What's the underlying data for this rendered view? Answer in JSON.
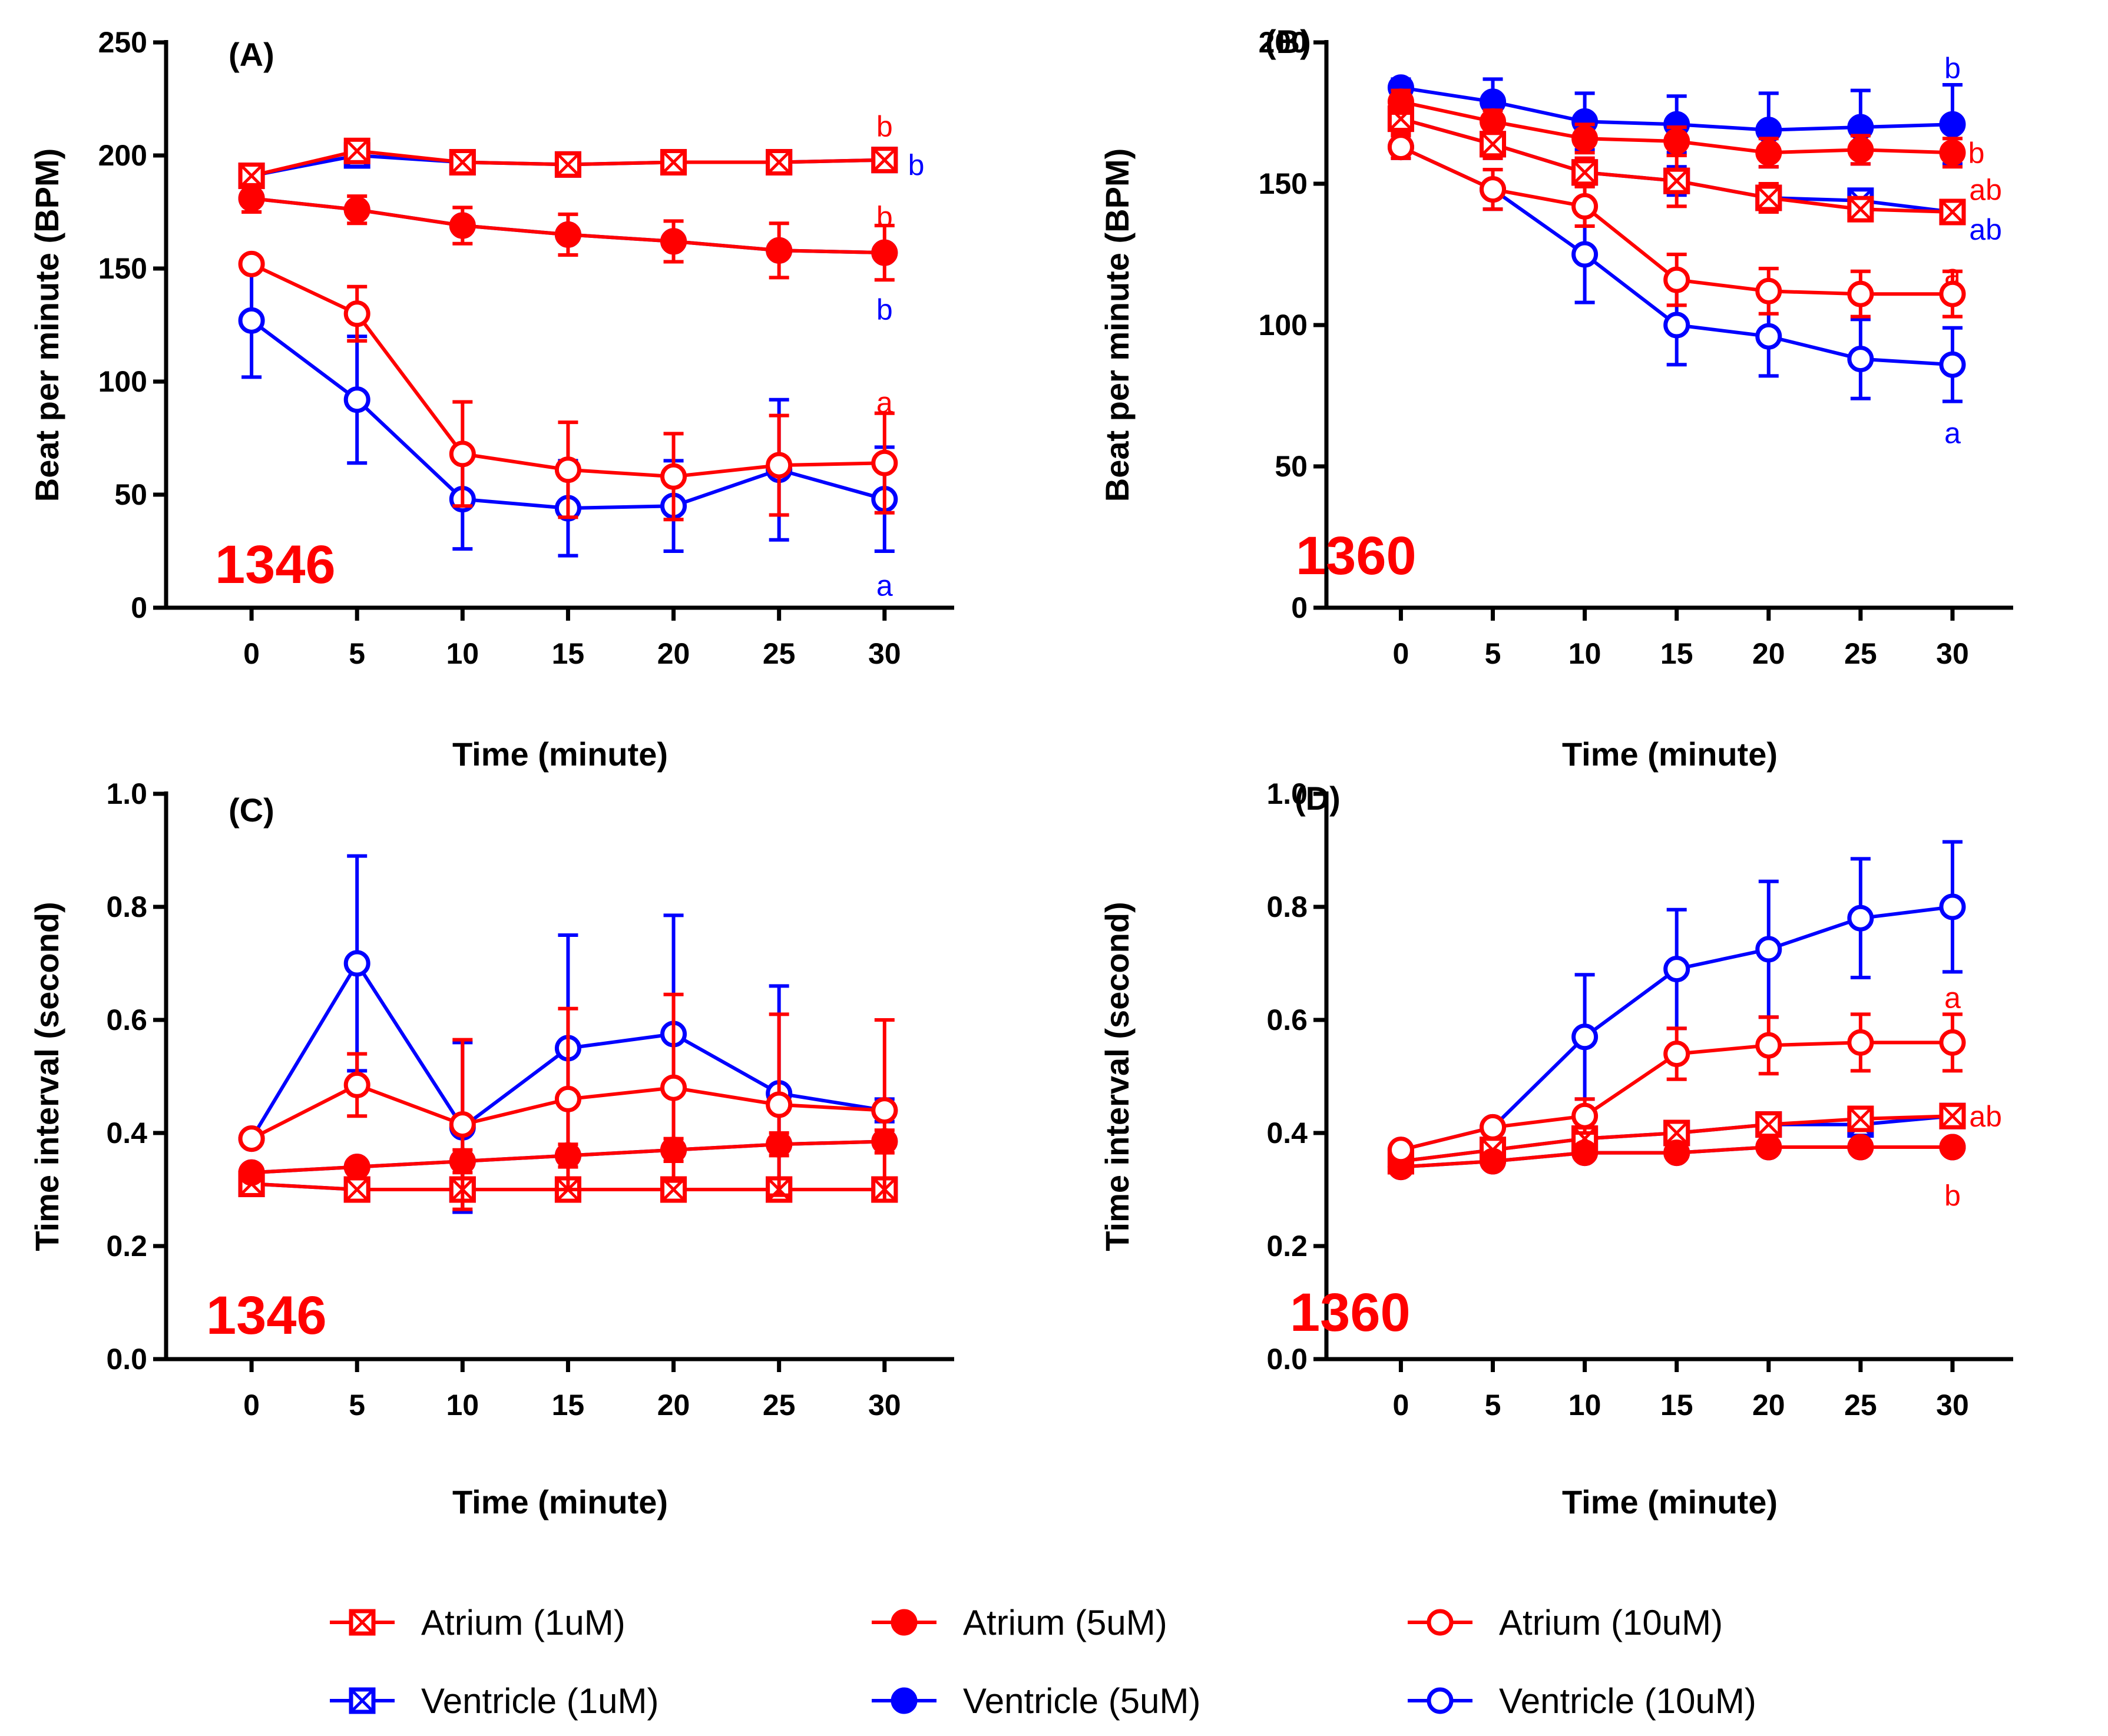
{
  "colors": {
    "atrium": "#ff0000",
    "ventricle": "#0000ff"
  },
  "legend": [
    {
      "label": "Atrium (1uM)",
      "color": "#ff0000",
      "marker": "boxx"
    },
    {
      "label": "Atrium (5uM)",
      "color": "#ff0000",
      "marker": "filled"
    },
    {
      "label": "Atrium (10uM)",
      "color": "#ff0000",
      "marker": "open"
    },
    {
      "label": "Ventricle (1uM)",
      "color": "#0000ff",
      "marker": "boxx"
    },
    {
      "label": "Ventricle (5uM)",
      "color": "#0000ff",
      "marker": "filled"
    },
    {
      "label": "Ventricle (10uM)",
      "color": "#0000ff",
      "marker": "open"
    }
  ],
  "chart_data": [
    {
      "panel": "(A)",
      "type": "line",
      "strain_label": "1346",
      "xlabel": "Time (minute)",
      "ylabel": "Beat per minute (BPM)",
      "x": [
        0,
        5,
        10,
        15,
        20,
        25,
        30
      ],
      "xticks": [
        "0",
        "5",
        "10",
        "15",
        "20",
        "25",
        "30"
      ],
      "ylim": [
        0,
        250
      ],
      "yticks": [
        "0",
        "50",
        "100",
        "150",
        "200",
        "250"
      ],
      "series": [
        {
          "name": "Ventricle (1uM)",
          "color": "#0000ff",
          "marker": "boxx",
          "values": [
            191,
            200,
            197,
            196,
            197,
            197,
            198
          ],
          "errors": [
            2,
            2,
            2,
            2,
            2,
            2,
            2
          ]
        },
        {
          "name": "Ventricle (5uM)",
          "color": "#0000ff",
          "marker": "filled",
          "values": [
            181,
            176,
            169,
            165,
            162,
            158,
            157
          ],
          "errors": [
            3,
            3,
            3,
            3,
            3,
            3,
            3
          ]
        },
        {
          "name": "Ventricle (10uM)",
          "color": "#0000ff",
          "marker": "open",
          "values": [
            127,
            92,
            48,
            44,
            45,
            61,
            48
          ],
          "errors": [
            25,
            28,
            22,
            21,
            20,
            31,
            23
          ]
        },
        {
          "name": "Atrium (1uM)",
          "color": "#ff0000",
          "marker": "boxx",
          "values": [
            191,
            202,
            197,
            196,
            197,
            197,
            198
          ],
          "errors": [
            2,
            2,
            2,
            2,
            2,
            2,
            2
          ]
        },
        {
          "name": "Atrium (5uM)",
          "color": "#ff0000",
          "marker": "filled",
          "values": [
            181,
            176,
            169,
            165,
            162,
            158,
            157
          ],
          "errors": [
            6,
            6,
            8,
            9,
            9,
            12,
            12
          ]
        },
        {
          "name": "Atrium (10uM)",
          "color": "#ff0000",
          "marker": "open",
          "values": [
            152,
            130,
            68,
            61,
            58,
            63,
            64
          ],
          "errors": [
            3,
            12,
            23,
            21,
            19,
            22,
            22
          ]
        }
      ],
      "annotations": [
        {
          "text": "b",
          "color": "#ff0000",
          "x": 30,
          "y": 213
        },
        {
          "text": "b",
          "color": "#0000ff",
          "x": 31.5,
          "y": 196
        },
        {
          "text": "b",
          "color": "#ff0000",
          "x": 30,
          "y": 173
        },
        {
          "text": "b",
          "color": "#0000ff",
          "x": 30,
          "y": 132
        },
        {
          "text": "a",
          "color": "#ff0000",
          "x": 30,
          "y": 91
        },
        {
          "text": "a",
          "color": "#0000ff",
          "x": 30,
          "y": 10
        }
      ]
    },
    {
      "panel": "(B)",
      "type": "line",
      "strain_label": "1360",
      "xlabel": "Time (minute)",
      "ylabel": "Beat per minute (BPM)",
      "x": [
        0,
        5,
        10,
        15,
        20,
        25,
        30
      ],
      "xticks": [
        "0",
        "5",
        "10",
        "15",
        "20",
        "25",
        "30"
      ],
      "ylim": [
        0,
        200
      ],
      "yticks": [
        "0",
        "50",
        "100",
        "150",
        "200"
      ],
      "series": [
        {
          "name": "Ventricle (1uM)",
          "color": "#0000ff",
          "marker": "boxx",
          "values": [
            173,
            164,
            154,
            151,
            145,
            144,
            140
          ],
          "errors": [
            4,
            5,
            5,
            5,
            5,
            4,
            3
          ]
        },
        {
          "name": "Ventricle (5uM)",
          "color": "#0000ff",
          "marker": "filled",
          "values": [
            184,
            179,
            172,
            171,
            169,
            170,
            171
          ],
          "errors": [
            3,
            8,
            10,
            10,
            13,
            13,
            14
          ]
        },
        {
          "name": "Ventricle (10uM)",
          "color": "#0000ff",
          "marker": "open",
          "values": [
            163,
            148,
            125,
            100,
            96,
            88,
            86
          ],
          "errors": [
            4,
            7,
            17,
            14,
            14,
            14,
            13
          ]
        },
        {
          "name": "Atrium (1uM)",
          "color": "#ff0000",
          "marker": "boxx",
          "values": [
            173,
            164,
            154,
            151,
            145,
            141,
            140
          ],
          "errors": [
            5,
            5,
            5,
            9,
            5,
            4,
            3
          ]
        },
        {
          "name": "Atrium (5uM)",
          "color": "#ff0000",
          "marker": "filled",
          "values": [
            179,
            172,
            166,
            165,
            161,
            162,
            161
          ],
          "errors": [
            4,
            4,
            5,
            5,
            5,
            5,
            5
          ]
        },
        {
          "name": "Atrium (10uM)",
          "color": "#ff0000",
          "marker": "open",
          "values": [
            163,
            148,
            142,
            116,
            112,
            111,
            111
          ],
          "errors": [
            4,
            7,
            7,
            9,
            8,
            8,
            8
          ]
        }
      ],
      "annotations": [
        {
          "text": "b",
          "color": "#0000ff",
          "x": 30,
          "y": 191
        },
        {
          "text": "b",
          "color": "#ff0000",
          "x": 31.3,
          "y": 161
        },
        {
          "text": "ab",
          "color": "#ff0000",
          "x": 31.8,
          "y": 148
        },
        {
          "text": "ab",
          "color": "#0000ff",
          "x": 31.8,
          "y": 134
        },
        {
          "text": "a",
          "color": "#ff0000",
          "x": 30,
          "y": 118
        },
        {
          "text": "a",
          "color": "#0000ff",
          "x": 30,
          "y": 62
        }
      ]
    },
    {
      "panel": "(C)",
      "type": "line",
      "strain_label": "1346",
      "xlabel": "Time (minute)",
      "ylabel": "Time interval (second)",
      "x": [
        0,
        5,
        10,
        15,
        20,
        25,
        30
      ],
      "xticks": [
        "0",
        "5",
        "10",
        "15",
        "20",
        "25",
        "30"
      ],
      "ylim": [
        0,
        1.0
      ],
      "yticks": [
        "0.0",
        "0.2",
        "0.4",
        "0.6",
        "0.8",
        "1.0"
      ],
      "series": [
        {
          "name": "Ventricle (1uM)",
          "color": "#0000ff",
          "marker": "boxx",
          "values": [
            0.31,
            0.3,
            0.3,
            0.3,
            0.3,
            0.3,
            0.3
          ],
          "errors": [
            0.01,
            0.01,
            0.04,
            0.01,
            0.01,
            0.01,
            0.01
          ]
        },
        {
          "name": "Ventricle (5uM)",
          "color": "#0000ff",
          "marker": "filled",
          "values": [
            0.33,
            0.34,
            0.35,
            0.36,
            0.37,
            0.38,
            0.385
          ],
          "errors": [
            0.01,
            0.01,
            0.01,
            0.01,
            0.01,
            0.01,
            0.01
          ]
        },
        {
          "name": "Ventricle (10uM)",
          "color": "#0000ff",
          "marker": "open",
          "values": [
            0.39,
            0.7,
            0.41,
            0.55,
            0.575,
            0.47,
            0.44
          ],
          "errors": [
            0.01,
            0.19,
            0.15,
            0.2,
            0.21,
            0.19,
            0.02
          ]
        },
        {
          "name": "Atrium (1uM)",
          "color": "#ff0000",
          "marker": "boxx",
          "values": [
            0.31,
            0.3,
            0.3,
            0.3,
            0.3,
            0.3,
            0.3
          ],
          "errors": [
            0.01,
            0.01,
            0.02,
            0.01,
            0.01,
            0.01,
            0.01
          ]
        },
        {
          "name": "Atrium (5uM)",
          "color": "#ff0000",
          "marker": "filled",
          "values": [
            0.33,
            0.34,
            0.35,
            0.36,
            0.37,
            0.38,
            0.385
          ],
          "errors": [
            0.01,
            0.01,
            0.02,
            0.02,
            0.02,
            0.02,
            0.02
          ]
        },
        {
          "name": "Atrium (10uM)",
          "color": "#ff0000",
          "marker": "open",
          "values": [
            0.39,
            0.485,
            0.415,
            0.46,
            0.48,
            0.45,
            0.44
          ],
          "errors": [
            0.01,
            0.055,
            0.15,
            0.16,
            0.165,
            0.16,
            0.16
          ]
        }
      ],
      "annotations": []
    },
    {
      "panel": "(D)",
      "type": "line",
      "strain_label": "1360",
      "xlabel": "Time (minute)",
      "ylabel": "Time interval (second)",
      "x": [
        0,
        5,
        10,
        15,
        20,
        25,
        30
      ],
      "xticks": [
        "0",
        "5",
        "10",
        "15",
        "20",
        "25",
        "30"
      ],
      "ylim": [
        0,
        1.0
      ],
      "yticks": [
        "0.0",
        "0.2",
        "0.4",
        "0.6",
        "0.8",
        "1.0"
      ],
      "series": [
        {
          "name": "Ventricle (1uM)",
          "color": "#0000ff",
          "marker": "boxx",
          "values": [
            0.35,
            0.37,
            0.39,
            0.4,
            0.415,
            0.415,
            0.43
          ],
          "errors": [
            0.01,
            0.01,
            0.01,
            0.01,
            0.01,
            0.01,
            0.01
          ]
        },
        {
          "name": "Ventricle (5uM)",
          "color": "#0000ff",
          "marker": "filled",
          "values": [
            0.34,
            0.35,
            0.365,
            0.365,
            0.375,
            0.375,
            0.375
          ],
          "errors": [
            0.01,
            0.01,
            0.01,
            0.01,
            0.01,
            0.01,
            0.01
          ]
        },
        {
          "name": "Ventricle (10uM)",
          "color": "#0000ff",
          "marker": "open",
          "values": [
            0.37,
            0.41,
            0.57,
            0.69,
            0.725,
            0.78,
            0.8
          ],
          "errors": [
            0.01,
            0.01,
            0.11,
            0.105,
            0.12,
            0.105,
            0.115
          ]
        },
        {
          "name": "Atrium (1uM)",
          "color": "#ff0000",
          "marker": "boxx",
          "values": [
            0.35,
            0.37,
            0.39,
            0.4,
            0.415,
            0.425,
            0.43
          ],
          "errors": [
            0.01,
            0.01,
            0.01,
            0.01,
            0.01,
            0.01,
            0.01
          ]
        },
        {
          "name": "Atrium (5uM)",
          "color": "#ff0000",
          "marker": "filled",
          "values": [
            0.34,
            0.35,
            0.365,
            0.365,
            0.375,
            0.375,
            0.375
          ],
          "errors": [
            0.01,
            0.01,
            0.01,
            0.01,
            0.01,
            0.01,
            0.01
          ]
        },
        {
          "name": "Atrium (10uM)",
          "color": "#ff0000",
          "marker": "open",
          "values": [
            0.37,
            0.41,
            0.43,
            0.54,
            0.555,
            0.56,
            0.56
          ],
          "errors": [
            0.01,
            0.01,
            0.03,
            0.045,
            0.05,
            0.05,
            0.05
          ]
        }
      ],
      "annotations": [
        {
          "text": "a",
          "color": "#ff0000",
          "x": 30,
          "y": 0.64
        },
        {
          "text": "ab",
          "color": "#ff0000",
          "x": 31.8,
          "y": 0.43
        },
        {
          "text": "b",
          "color": "#ff0000",
          "x": 30,
          "y": 0.29
        }
      ]
    }
  ]
}
